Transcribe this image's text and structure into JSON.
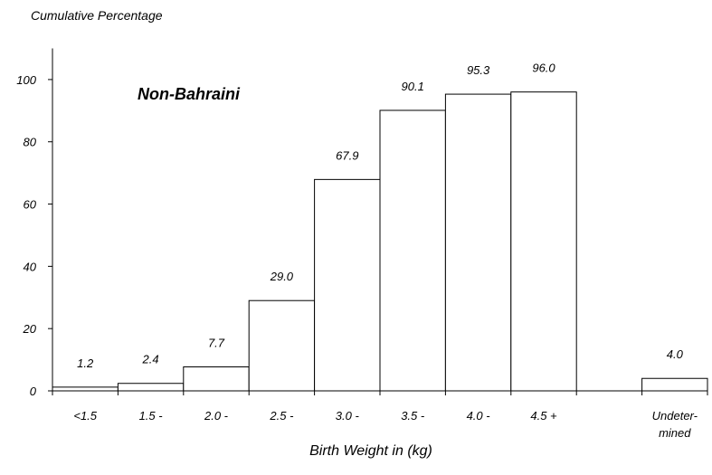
{
  "chart_data": {
    "type": "bar",
    "ylabel": "Cumulative Percentage",
    "xlabel": "Birth Weight in (kg)",
    "annotation": "Non-Bahraini",
    "ylim": [
      0,
      110
    ],
    "yticks": [
      0,
      20,
      40,
      60,
      80,
      100
    ],
    "grid": false,
    "categories": [
      "<1.5",
      "1.5 -",
      "2.0 -",
      "2.5 -",
      "3.0 -",
      "3.5 -",
      "4.0 -",
      "4.5 +",
      "",
      "Undeter-|mined"
    ],
    "values": [
      1.2,
      2.4,
      7.7,
      29.0,
      67.9,
      90.1,
      95.3,
      96.0,
      null,
      4.0
    ],
    "data_labels": [
      "1.2",
      "2.4",
      "7.7",
      "29.0",
      "67.9",
      "90.1",
      "95.3",
      "96.0",
      "",
      "4.0"
    ]
  }
}
